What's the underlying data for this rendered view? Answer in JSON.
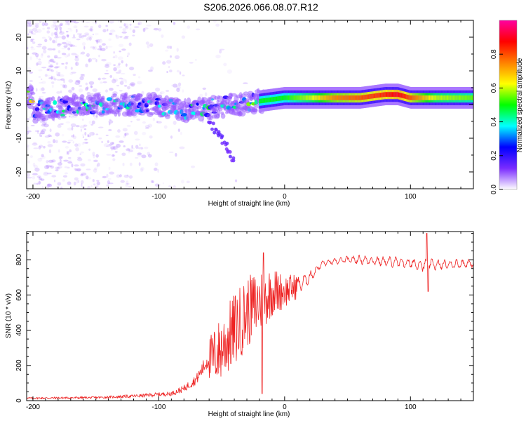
{
  "title": "S206.2026.066.08.07.R12",
  "colorbar": {
    "label": "Normalized spectral amplitude",
    "ticks": [
      "0.0",
      "0.2",
      "0.4",
      "0.6",
      "0.8"
    ],
    "tick_values": [
      0.0,
      0.2,
      0.4,
      0.6,
      0.8
    ],
    "range": [
      0,
      1
    ],
    "colors": [
      "#ffffff",
      "#7a2cff",
      "#0000ff",
      "#00ffff",
      "#00ff00",
      "#ffff00",
      "#ff8000",
      "#ff0000",
      "#ff00a0"
    ]
  },
  "chart_data": [
    {
      "type": "heatmap",
      "ylabel": "Frequency (Hz)",
      "xlabel": "Height of straight line (km)",
      "xlim": [
        -205,
        150
      ],
      "ylim": [
        -25,
        25
      ],
      "xticks": [
        -200,
        -100,
        0,
        100
      ],
      "xtick_labels": [
        "-200",
        "-100",
        "0",
        "100"
      ],
      "yticks": [
        -20,
        -10,
        0,
        10,
        20
      ],
      "ytick_labels": [
        "-20",
        "-10",
        "0",
        "10",
        "20"
      ],
      "ridge": [
        {
          "x": -200,
          "y": -2,
          "a": 0.3
        },
        {
          "x": -180,
          "y": -1,
          "a": 0.35
        },
        {
          "x": -160,
          "y": 0,
          "a": 0.4
        },
        {
          "x": -140,
          "y": 0,
          "a": 0.35
        },
        {
          "x": -120,
          "y": 0,
          "a": 0.35
        },
        {
          "x": -100,
          "y": 0,
          "a": 0.3
        },
        {
          "x": -80,
          "y": -2,
          "a": 0.35
        },
        {
          "x": -60,
          "y": -1,
          "a": 0.4
        },
        {
          "x": -40,
          "y": 0,
          "a": 0.35
        },
        {
          "x": -20,
          "y": 1,
          "a": 0.5
        },
        {
          "x": 0,
          "y": 2,
          "a": 0.5
        },
        {
          "x": 20,
          "y": 2,
          "a": 0.6
        },
        {
          "x": 40,
          "y": 2,
          "a": 0.75
        },
        {
          "x": 60,
          "y": 2,
          "a": 0.8
        },
        {
          "x": 80,
          "y": 3,
          "a": 0.85
        },
        {
          "x": 90,
          "y": 3,
          "a": 0.9
        },
        {
          "x": 100,
          "y": 2,
          "a": 0.8
        },
        {
          "x": 120,
          "y": 2,
          "a": 0.6
        },
        {
          "x": 150,
          "y": 2,
          "a": 0.55
        }
      ],
      "branch": [
        {
          "x": -60,
          "y": -5
        },
        {
          "x": -50,
          "y": -10
        },
        {
          "x": -40,
          "y": -17
        }
      ]
    },
    {
      "type": "line",
      "ylabel": "SNR (10 * v/v)",
      "xlabel": "Height of straight line (km)",
      "xlim": [
        -205,
        150
      ],
      "ylim": [
        0,
        960
      ],
      "xticks": [
        -200,
        -100,
        0,
        100
      ],
      "xtick_labels": [
        "-200",
        "-100",
        "0",
        "100"
      ],
      "yticks": [
        0,
        200,
        400,
        600,
        800
      ],
      "ytick_labels": [
        "0",
        "200",
        "400",
        "600",
        "800"
      ],
      "series": [
        {
          "name": "SNR",
          "color": "#ee2222",
          "envelope_x": [
            -205,
            -150,
            -120,
            -90,
            -80,
            -70,
            -60,
            -50,
            -40,
            -30,
            -20,
            -10,
            0,
            10,
            20,
            30,
            40,
            50,
            60,
            80,
            100,
            110,
            115,
            120,
            150
          ],
          "envelope_mid": [
            12,
            15,
            22,
            35,
            60,
            110,
            220,
            300,
            400,
            500,
            560,
            620,
            620,
            650,
            700,
            780,
            790,
            800,
            800,
            790,
            780,
            770,
            780,
            770,
            780
          ],
          "envelope_amp": [
            10,
            12,
            18,
            25,
            40,
            60,
            120,
            160,
            180,
            170,
            160,
            120,
            80,
            60,
            40,
            20,
            20,
            25,
            30,
            35,
            40,
            45,
            40,
            35,
            30
          ]
        }
      ]
    }
  ]
}
